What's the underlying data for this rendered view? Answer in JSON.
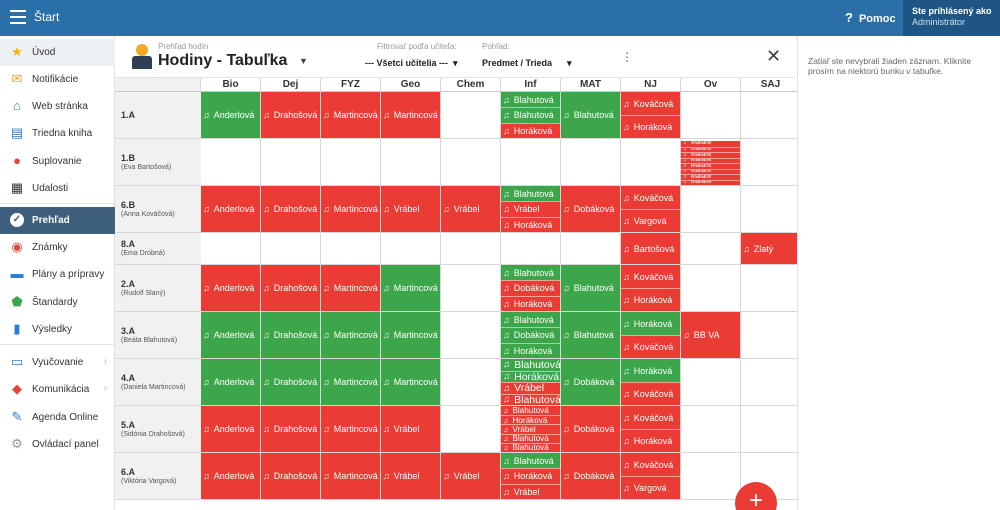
{
  "topbar": {
    "title": "Štart",
    "help": "Pomoc",
    "user_line1": "Ste prihlásený ako",
    "user_line2": "Administrátor"
  },
  "sidebar": {
    "items": [
      {
        "label": "Úvod",
        "icon": "star-icon",
        "color": "#f5b800"
      },
      {
        "label": "Notifikácie",
        "icon": "envelope-icon",
        "color": "#f0a030"
      },
      {
        "label": "Web stránka",
        "icon": "home-icon",
        "color": "#2e9a5a"
      },
      {
        "label": "Triedna kniha",
        "icon": "book-icon",
        "color": "#2b7cd3"
      },
      {
        "label": "Suplovanie",
        "icon": "person-icon",
        "color": "#e0463c"
      },
      {
        "label": "Udalosti",
        "icon": "calendar-icon",
        "color": "#333333"
      },
      {
        "label": "Prehľad",
        "icon": "check-circle-icon",
        "color": "#ffffff"
      },
      {
        "label": "Známky",
        "icon": "grade-icon",
        "color": "#e0463c"
      },
      {
        "label": "Plány a prípravy",
        "icon": "briefcase-icon",
        "color": "#2b7cd3"
      },
      {
        "label": "Štandardy",
        "icon": "shield-icon",
        "color": "#3da64a"
      },
      {
        "label": "Výsledky",
        "icon": "bar-chart-icon",
        "color": "#2b7cd3"
      },
      {
        "label": "Vyučovanie",
        "icon": "board-icon",
        "color": "#2b7cd3"
      },
      {
        "label": "Komunikácia",
        "icon": "chat-icon",
        "color": "#e0463c"
      },
      {
        "label": "Agenda Online",
        "icon": "pen-icon",
        "color": "#2b7cd3"
      },
      {
        "label": "Ovládací panel",
        "icon": "gear-icon",
        "color": "#999999"
      }
    ]
  },
  "header": {
    "view_small": "Prehľad hodín",
    "view_title": "Hodiny - Tabuľka",
    "filter_label": "Filtrovať podľa učiteľa:",
    "filter_value": "--- Všetci učitelia ---",
    "view_label": "Pohľad:",
    "view_value": "Predmet / Trieda"
  },
  "columns": [
    "Bio",
    "Dej",
    "FYZ",
    "Geo",
    "Chem",
    "Inf",
    "MAT",
    "NJ",
    "Ov",
    "SAJ"
  ],
  "rows": [
    {
      "cls": "1.A",
      "teacher": "",
      "h": 47,
      "cells": [
        [
          [
            "g",
            "Anderlová"
          ]
        ],
        [
          [
            "r",
            "Drahošová"
          ]
        ],
        [
          [
            "r",
            "Martincová"
          ]
        ],
        [
          [
            "r",
            "Martincová"
          ]
        ],
        [],
        [
          [
            "g",
            "Blahutová"
          ],
          [
            "g",
            "Blahutová"
          ],
          [
            "r",
            "Horáková"
          ]
        ],
        [
          [
            "g",
            "Blahutová"
          ]
        ],
        [
          [
            "r",
            "Kováčová"
          ],
          [
            "r",
            "Horáková"
          ]
        ],
        [],
        []
      ]
    },
    {
      "cls": "1.B",
      "teacher": "(Eva Bartošová)",
      "h": 47,
      "cells": [
        [],
        [],
        [],
        [],
        [],
        [],
        [],
        [],
        [
          [
            "r",
            "Maliarik"
          ],
          [
            "r",
            "Maliarik"
          ],
          [
            "r",
            "Maliarik"
          ],
          [
            "r",
            "Maliarik"
          ],
          [
            "r",
            "Maliarik"
          ],
          [
            "r",
            "Maliarik"
          ],
          [
            "r",
            "Maliarik"
          ],
          [
            "r",
            "Maliarik"
          ]
        ],
        []
      ]
    },
    {
      "cls": "6.B",
      "teacher": "(Anna Kováčová)",
      "h": 47,
      "cells": [
        [
          [
            "r",
            "Anderlová"
          ]
        ],
        [
          [
            "r",
            "Drahošová"
          ]
        ],
        [
          [
            "r",
            "Martincová"
          ]
        ],
        [
          [
            "r",
            "Vrábel"
          ]
        ],
        [
          [
            "r",
            "Vrábel"
          ]
        ],
        [
          [
            "g",
            "Blahutová"
          ],
          [
            "r",
            "Vrábel"
          ],
          [
            "r",
            "Horáková"
          ]
        ],
        [
          [
            "r",
            "Dobáková"
          ]
        ],
        [
          [
            "r",
            "Kováčová"
          ],
          [
            "r",
            "Vargová"
          ]
        ],
        [],
        []
      ]
    },
    {
      "cls": "8.A",
      "teacher": "(Ema Drobná)",
      "h": 32,
      "cells": [
        [],
        [],
        [],
        [],
        [],
        [],
        [],
        [
          [
            "r",
            "Bartošová"
          ]
        ],
        [],
        [
          [
            "r",
            "Zlatý"
          ]
        ]
      ]
    },
    {
      "cls": "2.A",
      "teacher": "(Rudolf Slaný)",
      "h": 47,
      "cells": [
        [
          [
            "r",
            "Anderlová"
          ]
        ],
        [
          [
            "r",
            "Drahošová"
          ]
        ],
        [
          [
            "r",
            "Martincová"
          ]
        ],
        [
          [
            "g",
            "Martincová"
          ]
        ],
        [],
        [
          [
            "g",
            "Blahutová"
          ],
          [
            "r",
            "Dobáková"
          ],
          [
            "r",
            "Horáková"
          ]
        ],
        [
          [
            "g",
            "Blahutová"
          ]
        ],
        [
          [
            "r",
            "Kováčová"
          ],
          [
            "r",
            "Horáková"
          ]
        ],
        [],
        []
      ]
    },
    {
      "cls": "3.A",
      "teacher": "(Beáta Blahutová)",
      "h": 47,
      "cells": [
        [
          [
            "g",
            "Anderlová"
          ]
        ],
        [
          [
            "g",
            "Drahošová"
          ]
        ],
        [
          [
            "g",
            "Martincová"
          ]
        ],
        [
          [
            "g",
            "Martincová"
          ]
        ],
        [],
        [
          [
            "g",
            "Blahutová"
          ],
          [
            "g",
            "Dobáková"
          ],
          [
            "g",
            "Horáková"
          ]
        ],
        [
          [
            "g",
            "Blahutová"
          ]
        ],
        [
          [
            "g",
            "Horáková"
          ],
          [
            "r",
            "Kováčová"
          ]
        ],
        [
          [
            "r",
            "BB   VA"
          ]
        ],
        []
      ]
    },
    {
      "cls": "4.A",
      "teacher": "(Daniela Martincová)",
      "h": 47,
      "cells": [
        [
          [
            "g",
            "Anderlová"
          ]
        ],
        [
          [
            "g",
            "Drahošová"
          ]
        ],
        [
          [
            "g",
            "Martincová"
          ]
        ],
        [
          [
            "g",
            "Martincová"
          ]
        ],
        [],
        [
          [
            "g",
            "Blahutová"
          ],
          [
            "g",
            "Horáková"
          ],
          [
            "r",
            "Vrábel"
          ],
          [
            "r",
            "Blahutová"
          ]
        ],
        [
          [
            "g",
            "Dobáková"
          ]
        ],
        [
          [
            "g",
            "Horáková"
          ],
          [
            "r",
            "Kováčová"
          ]
        ],
        [],
        []
      ]
    },
    {
      "cls": "5.A",
      "teacher": "(Sidónia Drahošová)",
      "h": 47,
      "cells": [
        [
          [
            "r",
            "Anderlová"
          ]
        ],
        [
          [
            "r",
            "Drahošová"
          ]
        ],
        [
          [
            "r",
            "Martincová"
          ]
        ],
        [
          [
            "r",
            "Vrábel"
          ]
        ],
        [],
        [
          [
            "r",
            "Blahutová"
          ],
          [
            "r",
            "Horáková"
          ],
          [
            "r",
            "Vrábel"
          ],
          [
            "r",
            "Blahutová"
          ],
          [
            "r",
            "Blahutová"
          ]
        ],
        [
          [
            "r",
            "Dobáková"
          ]
        ],
        [
          [
            "r",
            "Kováčová"
          ],
          [
            "r",
            "Horáková"
          ]
        ],
        [],
        []
      ]
    },
    {
      "cls": "6.A",
      "teacher": "(Viktória Vargová)",
      "h": 47,
      "cells": [
        [
          [
            "r",
            "Anderlová"
          ]
        ],
        [
          [
            "r",
            "Drahošová"
          ]
        ],
        [
          [
            "r",
            "Martincová"
          ]
        ],
        [
          [
            "r",
            "Vrábel"
          ]
        ],
        [
          [
            "r",
            "Vrábel"
          ]
        ],
        [
          [
            "g",
            "Blahutová"
          ],
          [
            "r",
            "Horáková"
          ],
          [
            "r",
            "Vrábel"
          ]
        ],
        [
          [
            "r",
            "Dobáková"
          ]
        ],
        [
          [
            "r",
            "Kováčová"
          ],
          [
            "r",
            "Vargová"
          ]
        ],
        [],
        []
      ]
    }
  ],
  "side_panel": {
    "message": "Zatiaľ ste nevybrali žiaden záznam. Kliknite prosím na niektorú bunku v tabuľke."
  },
  "fab": {
    "label": "+"
  }
}
